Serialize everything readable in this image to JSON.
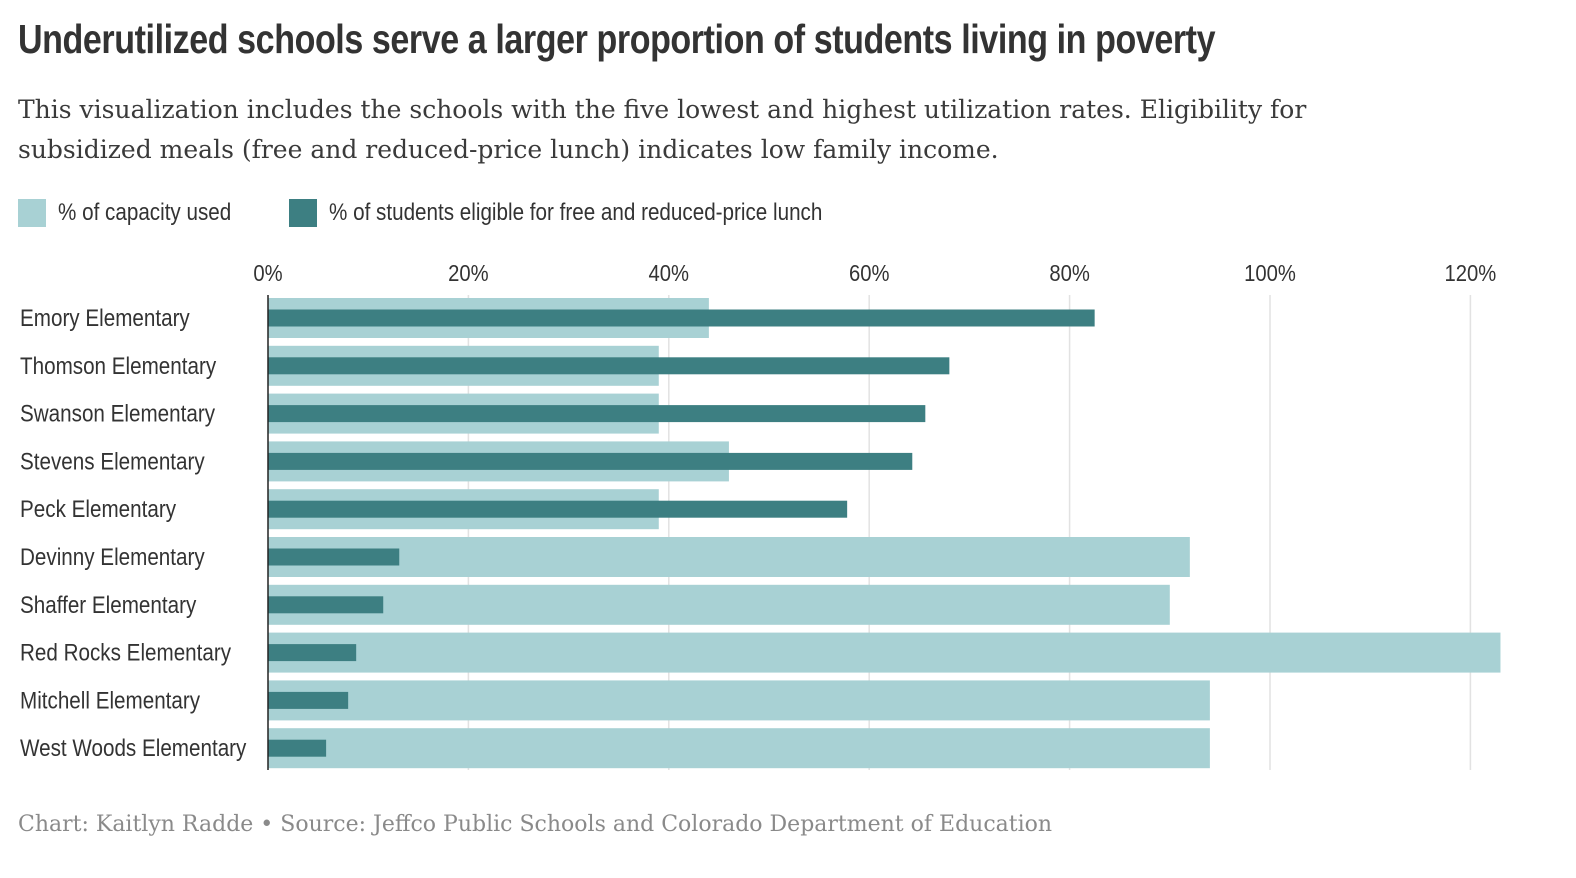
{
  "title": "Underutilized schools serve a larger proportion of students living in poverty",
  "subtitle": "This visualization includes the schools with the five lowest and highest utilization rates. Eligibility for subsidized meals (free and reduced-price lunch) indicates low family income.",
  "footer": "Chart: Kaitlyn Radde • Source: Jeffco Public Schools and Colorado Department of Education",
  "colors": {
    "capacity": "#a8d1d4",
    "lunch": "#3d7f82",
    "gridline": "#e2e2e2",
    "axis": "#222222"
  },
  "legend": [
    {
      "label": "% of capacity used",
      "color": "#a8d1d4"
    },
    {
      "label": "% of students eligible for free and reduced-price lunch",
      "color": "#3d7f82"
    }
  ],
  "chart_data": {
    "type": "bar",
    "orientation": "horizontal",
    "categories": [
      "Emory Elementary",
      "Thomson Elementary",
      "Swanson Elementary",
      "Stevens Elementary",
      "Peck Elementary",
      "Devinny Elementary",
      "Shaffer Elementary",
      "Red Rocks Elementary",
      "Mitchell Elementary",
      "West Woods Elementary"
    ],
    "series": [
      {
        "name": "% of capacity used",
        "values": [
          44,
          39,
          39,
          46,
          39,
          92,
          90,
          123,
          94,
          94
        ]
      },
      {
        "name": "% of students eligible for free and reduced-price lunch",
        "values": [
          82.5,
          68,
          65.6,
          64.3,
          57.8,
          13.1,
          11.5,
          8.8,
          8,
          5.8
        ]
      }
    ],
    "xlim": [
      0,
      123
    ],
    "xticks": [
      0,
      20,
      40,
      60,
      80,
      100,
      120
    ],
    "xtick_labels": [
      "0%",
      "20%",
      "40%",
      "60%",
      "80%",
      "100%",
      "120%"
    ],
    "grid": true,
    "legend_position": "top-left"
  }
}
